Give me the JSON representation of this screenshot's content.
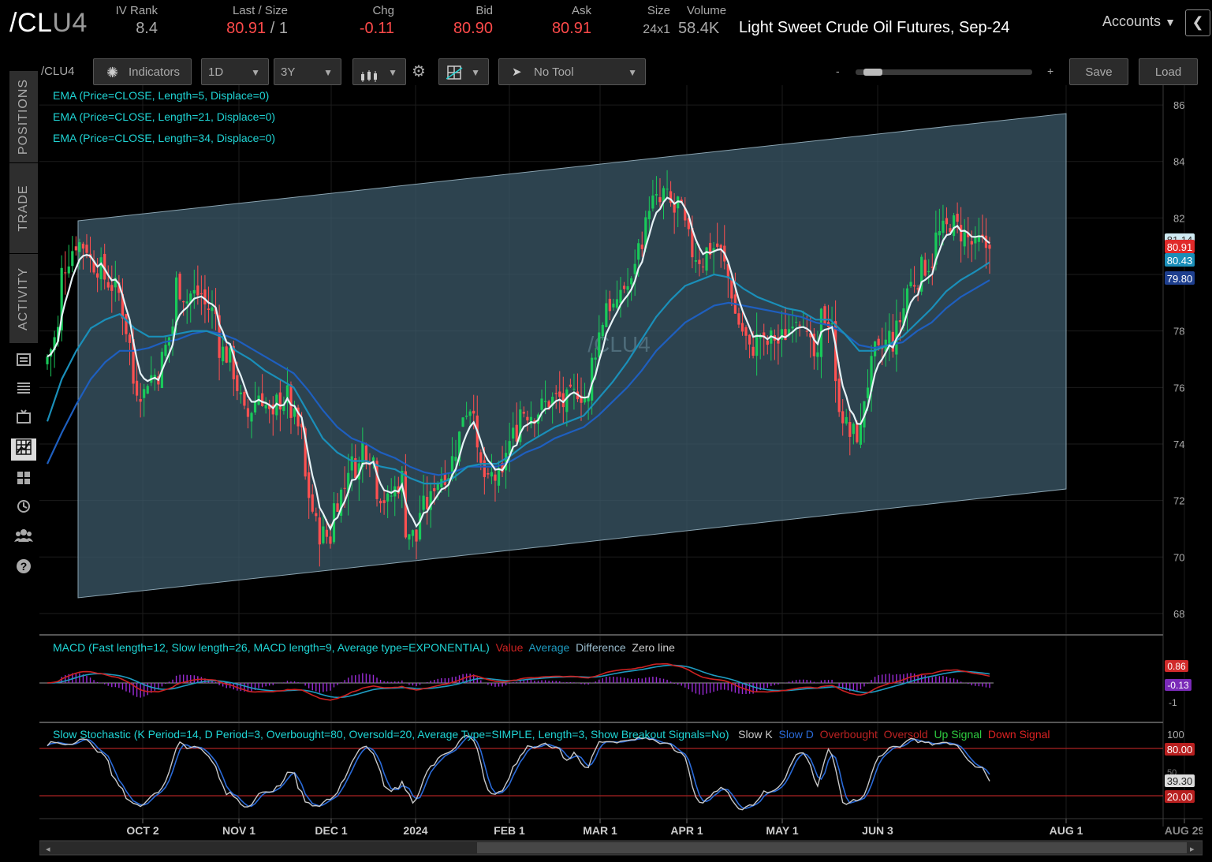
{
  "header": {
    "symbol_main": "/CL",
    "symbol_suffix": "U4",
    "ivrank_label": "IV Rank",
    "ivrank_value": "8.4",
    "last_label": "Last / Size",
    "last_value": "80.91",
    "last_size": "/ 1",
    "chg_label": "Chg",
    "chg_value": "-0.11",
    "bid_label": "Bid",
    "bid_value": "80.90",
    "ask_label": "Ask",
    "ask_value": "80.91",
    "size_label": "Size",
    "size_value": "24x1",
    "volume_label": "Volume",
    "volume_value": "58.4K",
    "description": "Light Sweet Crude Oil Futures, Sep-24",
    "accounts_label": "Accounts",
    "collapse_glyph": "❮"
  },
  "sidebar": {
    "tabs": [
      "POSITIONS",
      "TRADE",
      "ACTIVITY"
    ]
  },
  "toolbar": {
    "symbol": "/CLU4",
    "indicators_label": "Indicators",
    "timeframe": "1D",
    "range": "3Y",
    "tool_label": "No Tool",
    "zoom_minus": "-",
    "zoom_plus": "+",
    "save_label": "Save",
    "load_label": "Load"
  },
  "studies": {
    "ema5": "EMA (Price=CLOSE, Length=5, Displace=0)",
    "ema21": "EMA (Price=CLOSE, Length=21, Displace=0)",
    "ema34": "EMA (Price=CLOSE, Length=34, Displace=0)",
    "macd": "MACD (Fast length=12, Slow length=26, MACD length=9, Average type=EXPONENTIAL)",
    "macd_value": "Value",
    "macd_average": "Average",
    "macd_difference": "Difference",
    "macd_zero": "Zero line",
    "stoch": "Slow Stochastic (K Period=14, D Period=3, Overbought=80, Oversold=20, Average Type=SIMPLE, Length=3, Show Breakout Signals=No)",
    "stoch_k": "Slow K",
    "stoch_d": "Slow D",
    "stoch_ob": "Overbought",
    "stoch_os": "Oversold",
    "stoch_up": "Up Signal",
    "stoch_down": "Down Signal"
  },
  "watermark": "/CLU4",
  "chart_data": {
    "type": "candlestick",
    "price_axis_ticks": [
      "86",
      "84",
      "82",
      "80",
      "78",
      "76",
      "74",
      "72",
      "70",
      "68"
    ],
    "price_range": [
      67.3,
      86.7
    ],
    "date_axis_ticks": [
      "OCT 2",
      "NOV 1",
      "DEC 1",
      "2024",
      "FEB 1",
      "MAR 1",
      "APR 1",
      "MAY 1",
      "JUN 3",
      "AUG 1",
      "AUG 29"
    ],
    "price_badges": {
      "ema5": "81.14",
      "last": "80.91",
      "ema21": "80.43",
      "ema34": "79.80"
    },
    "close_path": [
      [
        76.8,
        78.0
      ],
      [
        79.8,
        80.9
      ],
      [
        81.2,
        81.0
      ],
      [
        80.6,
        80.2
      ],
      [
        80.0,
        79.5
      ],
      [
        79.9,
        77.5
      ],
      [
        76.3,
        75.8
      ],
      [
        76.3,
        76.5
      ],
      [
        76.6,
        78.2
      ],
      [
        79.9,
        79.1
      ],
      [
        79.3,
        79.3
      ],
      [
        79.0,
        78.6
      ],
      [
        77.6,
        77.0
      ],
      [
        77.1,
        75.0
      ],
      [
        74.7,
        75.8
      ],
      [
        76.0,
        74.7
      ],
      [
        75.4,
        75.7
      ],
      [
        75.4,
        74.3
      ],
      [
        73.3,
        71.1
      ],
      [
        70.9,
        70.7
      ],
      [
        71.6,
        72.5
      ],
      [
        73.3,
        73.2
      ],
      [
        74.1,
        73.5
      ],
      [
        72.6,
        71.9
      ],
      [
        72.0,
        72.8
      ],
      [
        71.2,
        70.6
      ],
      [
        71.5,
        72.0
      ],
      [
        72.5,
        73.0
      ],
      [
        72.6,
        74.3
      ],
      [
        75.0,
        75.5
      ],
      [
        73.8,
        72.5
      ],
      [
        72.9,
        72.7
      ],
      [
        73.6,
        74.5
      ],
      [
        75.3,
        75.1
      ],
      [
        75.0,
        75.4
      ],
      [
        75.5,
        75.6
      ],
      [
        75.3,
        75.7
      ],
      [
        76.1,
        75.5
      ],
      [
        76.4,
        78.4
      ],
      [
        79.2,
        78.7
      ],
      [
        79.5,
        79.6
      ],
      [
        80.2,
        81.7
      ],
      [
        82.6,
        82.5
      ],
      [
        83.1,
        82.2
      ],
      [
        83.0,
        81.2
      ],
      [
        80.9,
        80.5
      ],
      [
        80.8,
        81.0
      ],
      [
        81.2,
        79.4
      ],
      [
        78.9,
        77.7
      ],
      [
        77.0,
        77.9
      ],
      [
        77.3,
        77.8
      ],
      [
        77.4,
        78.1
      ],
      [
        78.6,
        78.6
      ],
      [
        77.9,
        76.8
      ],
      [
        78.5,
        78.4
      ],
      [
        76.4,
        74.6
      ],
      [
        74.3,
        74.4
      ],
      [
        75.2,
        77.2
      ],
      [
        76.9,
        77.8
      ],
      [
        77.2,
        78.8
      ],
      [
        79.4,
        79.9
      ],
      [
        80.1,
        80.5
      ],
      [
        81.2,
        81.6
      ],
      [
        82.0,
        81.5
      ],
      [
        81.6,
        80.9
      ],
      [
        81.2,
        80.91
      ]
    ],
    "ema21": [
      74.8,
      76.3,
      77.3,
      78.1,
      78.4,
      78.6,
      78.1,
      77.8,
      77.8,
      77.9,
      78.0,
      78.0,
      77.8,
      77.3,
      77.0,
      76.6,
      76.3,
      76.0,
      75.1,
      74.2,
      73.7,
      73.4,
      73.4,
      73.2,
      73.1,
      72.8,
      72.6,
      72.6,
      72.8,
      73.2,
      73.3,
      73.3,
      73.6,
      74.0,
      74.3,
      74.6,
      74.8,
      75.0,
      75.6,
      76.2,
      76.9,
      77.7,
      78.5,
      79.1,
      79.6,
      79.8,
      80.0,
      79.9,
      79.5,
      79.2,
      79.0,
      78.8,
      78.7,
      78.4,
      78.4,
      77.9,
      77.3,
      77.3,
      77.5,
      77.8,
      78.3,
      78.8,
      79.4,
      79.8,
      80.1,
      80.43
    ],
    "ema34": [
      73.3,
      74.4,
      75.4,
      76.3,
      76.9,
      77.3,
      77.3,
      77.4,
      77.6,
      77.7,
      77.9,
      78.0,
      77.9,
      77.7,
      77.4,
      77.1,
      76.8,
      76.5,
      75.9,
      75.2,
      74.6,
      74.2,
      74.0,
      73.7,
      73.5,
      73.2,
      73.0,
      72.9,
      73.0,
      73.2,
      73.2,
      73.2,
      73.4,
      73.7,
      73.9,
      74.2,
      74.4,
      74.6,
      75.0,
      75.5,
      76.0,
      76.6,
      77.3,
      77.8,
      78.3,
      78.6,
      78.9,
      79.0,
      78.9,
      78.8,
      78.7,
      78.6,
      78.5,
      78.3,
      78.2,
      77.9,
      77.5,
      77.4,
      77.5,
      77.6,
      78.0,
      78.3,
      78.8,
      79.2,
      79.5,
      79.8
    ]
  },
  "macd_axis": {
    "badge_top": "0.86",
    "badge_mid": "-0.13",
    "tick_low": "-1"
  },
  "stoch_axis": {
    "tick_100": "100",
    "badge_80": "80.00",
    "tick_mid": "50",
    "badge_value": "39.30",
    "badge_20": "20.00"
  },
  "colors": {
    "up": "#19c95a",
    "down": "#ff5050",
    "ema5": "#e6f2f6",
    "ema21": "#1a8fb9",
    "ema34": "#1e5fbf",
    "channel": "#3c5a69",
    "cyan": "#1fd4d4",
    "macd_value": "#cc2222",
    "macd_avg": "#1e9bc0",
    "macd_diff": "#9b2cd8"
  }
}
